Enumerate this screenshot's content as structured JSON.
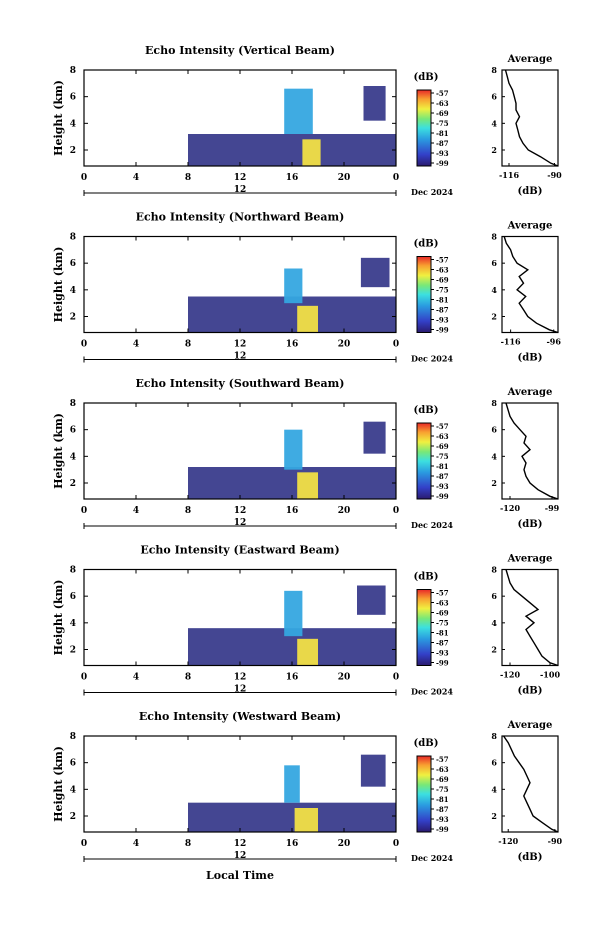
{
  "figure": {
    "date_label": "Dec 2024",
    "day_label": "12",
    "x_label": "Local Time",
    "y_label": "Height (km)",
    "colorbar_unit": "(dB)",
    "colorbar_ticks": [
      "-57",
      "-63",
      "-69",
      "-75",
      "-81",
      "-87",
      "-93",
      "-99"
    ],
    "avg_title": "Average",
    "avg_xlabel": "(dB)"
  },
  "chart_data": [
    {
      "type": "heatmap",
      "title": "Echo Intensity (Vertical Beam)",
      "xlabel": "Local Time",
      "ylabel": "Height (km)",
      "x_ticks": [
        "0",
        "4",
        "8",
        "12",
        "16",
        "20",
        "0"
      ],
      "y_ticks": [
        "2",
        "4",
        "6",
        "8"
      ],
      "xlim": [
        0,
        24
      ],
      "ylim": [
        0.8,
        8
      ],
      "colorbar": {
        "label": "(dB)",
        "range": [
          -99,
          -57
        ],
        "ticks": [
          -57,
          -63,
          -69,
          -75,
          -81,
          -87,
          -93,
          -99
        ]
      },
      "regions": [
        {
          "x": [
            8,
            24
          ],
          "y": [
            0.8,
            3.2
          ],
          "intensity": "low"
        },
        {
          "x": [
            15.4,
            17.6
          ],
          "y": [
            3.2,
            6.6
          ],
          "intensity": "medium"
        },
        {
          "x": [
            16.8,
            18.2
          ],
          "y": [
            0.8,
            2.8
          ],
          "intensity": "high"
        },
        {
          "x": [
            21.5,
            23.2
          ],
          "y": [
            4.2,
            6.8
          ],
          "intensity": "low"
        }
      ],
      "average": {
        "title": "Average",
        "xlabel": "(dB)",
        "x_ticks": [
          "-116",
          "-90"
        ],
        "y_ticks": [
          "2",
          "4",
          "6",
          "8"
        ],
        "xlim": [
          -120,
          -88
        ],
        "ylim": [
          0.8,
          8
        ],
        "height": [
          0.8,
          1.0,
          1.5,
          2.0,
          2.5,
          3.0,
          3.5,
          4.0,
          4.5,
          5.0,
          5.5,
          6.0,
          6.5,
          7.0,
          7.5,
          8.0
        ],
        "value": [
          -88,
          -92,
          -98,
          -105,
          -108,
          -110,
          -111,
          -112,
          -110,
          -112,
          -112,
          -113,
          -114,
          -116,
          -117,
          -118
        ]
      }
    },
    {
      "type": "heatmap",
      "title": "Echo Intensity (Northward Beam)",
      "xlabel": "Local Time",
      "ylabel": "Height (km)",
      "x_ticks": [
        "0",
        "4",
        "8",
        "12",
        "16",
        "20",
        "0"
      ],
      "y_ticks": [
        "2",
        "4",
        "6",
        "8"
      ],
      "xlim": [
        0,
        24
      ],
      "ylim": [
        0.8,
        8
      ],
      "colorbar": {
        "label": "(dB)",
        "range": [
          -99,
          -57
        ],
        "ticks": [
          -57,
          -63,
          -69,
          -75,
          -81,
          -87,
          -93,
          -99
        ]
      },
      "regions": [
        {
          "x": [
            8,
            24
          ],
          "y": [
            0.8,
            3.5
          ],
          "intensity": "low"
        },
        {
          "x": [
            15.4,
            16.8
          ],
          "y": [
            3.0,
            5.6
          ],
          "intensity": "medium"
        },
        {
          "x": [
            16.4,
            18.0
          ],
          "y": [
            0.8,
            2.8
          ],
          "intensity": "high"
        },
        {
          "x": [
            21.3,
            23.5
          ],
          "y": [
            4.2,
            6.4
          ],
          "intensity": "low"
        }
      ],
      "average": {
        "title": "Average",
        "xlabel": "(dB)",
        "x_ticks": [
          "-116",
          "-96"
        ],
        "y_ticks": [
          "2",
          "4",
          "6",
          "8"
        ],
        "xlim": [
          -120,
          -94
        ],
        "ylim": [
          0.8,
          8
        ],
        "height": [
          0.8,
          1.0,
          1.5,
          2.0,
          2.5,
          3.0,
          3.5,
          4.0,
          4.5,
          5.0,
          5.5,
          6.0,
          6.5,
          7.0,
          7.5,
          8.0
        ],
        "value": [
          -94,
          -98,
          -104,
          -108,
          -110,
          -112,
          -109,
          -113,
          -110,
          -112,
          -108,
          -113,
          -115,
          -116,
          -118,
          -119
        ]
      }
    },
    {
      "type": "heatmap",
      "title": "Echo Intensity (Southward Beam)",
      "xlabel": "Local Time",
      "ylabel": "Height (km)",
      "x_ticks": [
        "0",
        "4",
        "8",
        "12",
        "16",
        "20",
        "0"
      ],
      "y_ticks": [
        "2",
        "4",
        "6",
        "8"
      ],
      "xlim": [
        0,
        24
      ],
      "ylim": [
        0.8,
        8
      ],
      "colorbar": {
        "label": "(dB)",
        "range": [
          -99,
          -57
        ],
        "ticks": [
          -57,
          -63,
          -69,
          -75,
          -81,
          -87,
          -93,
          -99
        ]
      },
      "regions": [
        {
          "x": [
            8,
            24
          ],
          "y": [
            0.8,
            3.2
          ],
          "intensity": "low"
        },
        {
          "x": [
            15.4,
            16.8
          ],
          "y": [
            3.0,
            6.0
          ],
          "intensity": "medium"
        },
        {
          "x": [
            16.4,
            18.0
          ],
          "y": [
            0.8,
            2.8
          ],
          "intensity": "high"
        },
        {
          "x": [
            21.5,
            23.2
          ],
          "y": [
            4.2,
            6.6
          ],
          "intensity": "low"
        }
      ],
      "average": {
        "title": "Average",
        "xlabel": "(dB)",
        "x_ticks": [
          "-120",
          "-99"
        ],
        "y_ticks": [
          "2",
          "4",
          "6",
          "8"
        ],
        "xlim": [
          -124,
          -96
        ],
        "ylim": [
          0.8,
          8
        ],
        "height": [
          0.8,
          1.0,
          1.5,
          2.0,
          2.5,
          3.0,
          3.5,
          4.0,
          4.5,
          5.0,
          5.5,
          6.0,
          6.5,
          7.0,
          7.5,
          8.0
        ],
        "value": [
          -96,
          -100,
          -106,
          -110,
          -112,
          -113,
          -112,
          -114,
          -110,
          -113,
          -112,
          -115,
          -118,
          -120,
          -121,
          -122
        ]
      }
    },
    {
      "type": "heatmap",
      "title": "Echo Intensity (Eastward Beam)",
      "xlabel": "Local Time",
      "ylabel": "Height (km)",
      "x_ticks": [
        "0",
        "4",
        "8",
        "12",
        "16",
        "20",
        "0"
      ],
      "y_ticks": [
        "2",
        "4",
        "6",
        "8"
      ],
      "xlim": [
        0,
        24
      ],
      "ylim": [
        0.8,
        8
      ],
      "colorbar": {
        "label": "(dB)",
        "range": [
          -99,
          -57
        ],
        "ticks": [
          -57,
          -63,
          -69,
          -75,
          -81,
          -87,
          -93,
          -99
        ]
      },
      "regions": [
        {
          "x": [
            8,
            24
          ],
          "y": [
            0.8,
            3.6
          ],
          "intensity": "low"
        },
        {
          "x": [
            15.4,
            16.8
          ],
          "y": [
            3.0,
            6.4
          ],
          "intensity": "medium"
        },
        {
          "x": [
            16.4,
            18.0
          ],
          "y": [
            0.8,
            2.8
          ],
          "intensity": "high"
        },
        {
          "x": [
            21.0,
            23.2
          ],
          "y": [
            4.6,
            6.8
          ],
          "intensity": "low"
        }
      ],
      "average": {
        "title": "Average",
        "xlabel": "(dB)",
        "x_ticks": [
          "-120",
          "-100"
        ],
        "y_ticks": [
          "2",
          "4",
          "6",
          "8"
        ],
        "xlim": [
          -124,
          -96
        ],
        "ylim": [
          0.8,
          8
        ],
        "height": [
          0.8,
          1.0,
          1.5,
          2.0,
          2.5,
          3.0,
          3.5,
          4.0,
          4.5,
          5.0,
          5.5,
          6.0,
          6.5,
          7.0,
          7.5,
          8.0
        ],
        "value": [
          -96,
          -100,
          -104,
          -106,
          -108,
          -110,
          -112,
          -108,
          -112,
          -106,
          -110,
          -114,
          -118,
          -120,
          -121,
          -122
        ]
      }
    },
    {
      "type": "heatmap",
      "title": "Echo Intensity (Westward Beam)",
      "xlabel": "Local Time",
      "ylabel": "Height (km)",
      "x_ticks": [
        "0",
        "4",
        "8",
        "12",
        "16",
        "20",
        "0"
      ],
      "y_ticks": [
        "2",
        "4",
        "6",
        "8"
      ],
      "xlim": [
        0,
        24
      ],
      "ylim": [
        0.8,
        8
      ],
      "colorbar": {
        "label": "(dB)",
        "range": [
          -99,
          -57
        ],
        "ticks": [
          -57,
          -63,
          -69,
          -75,
          -81,
          -87,
          -93,
          -99
        ]
      },
      "regions": [
        {
          "x": [
            8,
            24
          ],
          "y": [
            0.8,
            3.0
          ],
          "intensity": "low"
        },
        {
          "x": [
            15.4,
            16.6
          ],
          "y": [
            3.0,
            5.8
          ],
          "intensity": "medium"
        },
        {
          "x": [
            16.2,
            18.0
          ],
          "y": [
            0.8,
            2.6
          ],
          "intensity": "high"
        },
        {
          "x": [
            21.3,
            23.2
          ],
          "y": [
            4.2,
            6.6
          ],
          "intensity": "low"
        }
      ],
      "average": {
        "title": "Average",
        "xlabel": "(dB)",
        "x_ticks": [
          "-120",
          "-90"
        ],
        "y_ticks": [
          "2",
          "4",
          "6",
          "8"
        ],
        "xlim": [
          -124,
          -88
        ],
        "ylim": [
          0.8,
          8
        ],
        "height": [
          0.8,
          1.0,
          1.5,
          2.0,
          2.5,
          3.0,
          3.5,
          4.0,
          4.5,
          5.0,
          5.5,
          6.0,
          6.5,
          7.0,
          7.5,
          8.0
        ],
        "value": [
          -88,
          -92,
          -98,
          -104,
          -106,
          -108,
          -110,
          -108,
          -106,
          -108,
          -110,
          -113,
          -116,
          -118,
          -120,
          -123
        ]
      }
    }
  ]
}
